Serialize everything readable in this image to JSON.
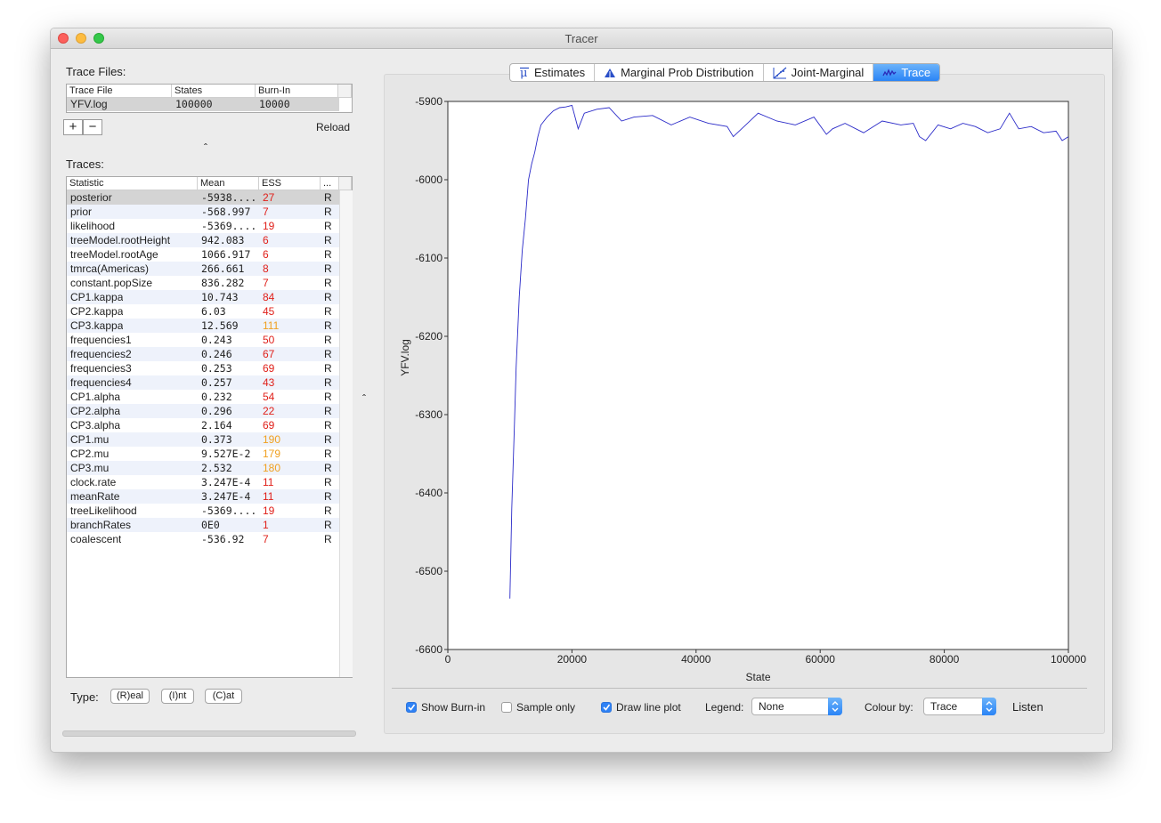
{
  "window": {
    "title": "Tracer"
  },
  "trace_files": {
    "label": "Trace Files:",
    "columns": [
      "Trace File",
      "States",
      "Burn-In"
    ],
    "rows": [
      {
        "file": "YFV.log",
        "states": "100000",
        "burnin": "10000"
      }
    ],
    "add_label": "+",
    "remove_label": "−",
    "reload_label": "Reload",
    "collapse_glyph": "ˆ"
  },
  "traces": {
    "label": "Traces:",
    "columns": [
      "Statistic",
      "Mean",
      "ESS",
      "..."
    ],
    "rows": [
      {
        "stat": "posterior",
        "mean": "-5938....",
        "ess": "27",
        "ess_color": "#e0201a",
        "type": "R"
      },
      {
        "stat": "prior",
        "mean": "-568.997",
        "ess": "7",
        "ess_color": "#e0201a",
        "type": "R"
      },
      {
        "stat": "likelihood",
        "mean": "-5369....",
        "ess": "19",
        "ess_color": "#e0201a",
        "type": "R"
      },
      {
        "stat": "treeModel.rootHeight",
        "mean": "942.083",
        "ess": "6",
        "ess_color": "#e0201a",
        "type": "R"
      },
      {
        "stat": "treeModel.rootAge",
        "mean": "1066.917",
        "ess": "6",
        "ess_color": "#e0201a",
        "type": "R"
      },
      {
        "stat": "tmrca(Americas)",
        "mean": "266.661",
        "ess": "8",
        "ess_color": "#e0201a",
        "type": "R"
      },
      {
        "stat": "constant.popSize",
        "mean": "836.282",
        "ess": "7",
        "ess_color": "#e0201a",
        "type": "R"
      },
      {
        "stat": "CP1.kappa",
        "mean": "10.743",
        "ess": "84",
        "ess_color": "#e0201a",
        "type": "R"
      },
      {
        "stat": "CP2.kappa",
        "mean": "6.03",
        "ess": "45",
        "ess_color": "#e0201a",
        "type": "R"
      },
      {
        "stat": "CP3.kappa",
        "mean": "12.569",
        "ess": "111",
        "ess_color": "#f0a020",
        "type": "R"
      },
      {
        "stat": "frequencies1",
        "mean": "0.243",
        "ess": "50",
        "ess_color": "#e0201a",
        "type": "R"
      },
      {
        "stat": "frequencies2",
        "mean": "0.246",
        "ess": "67",
        "ess_color": "#e0201a",
        "type": "R"
      },
      {
        "stat": "frequencies3",
        "mean": "0.253",
        "ess": "69",
        "ess_color": "#e0201a",
        "type": "R"
      },
      {
        "stat": "frequencies4",
        "mean": "0.257",
        "ess": "43",
        "ess_color": "#e0201a",
        "type": "R"
      },
      {
        "stat": "CP1.alpha",
        "mean": "0.232",
        "ess": "54",
        "ess_color": "#e0201a",
        "type": "R"
      },
      {
        "stat": "CP2.alpha",
        "mean": "0.296",
        "ess": "22",
        "ess_color": "#e0201a",
        "type": "R"
      },
      {
        "stat": "CP3.alpha",
        "mean": "2.164",
        "ess": "69",
        "ess_color": "#e0201a",
        "type": "R"
      },
      {
        "stat": "CP1.mu",
        "mean": "0.373",
        "ess": "190",
        "ess_color": "#f0a020",
        "type": "R"
      },
      {
        "stat": "CP2.mu",
        "mean": "9.527E-2",
        "ess": "179",
        "ess_color": "#f0a020",
        "type": "R"
      },
      {
        "stat": "CP3.mu",
        "mean": "2.532",
        "ess": "180",
        "ess_color": "#f0a020",
        "type": "R"
      },
      {
        "stat": "clock.rate",
        "mean": "3.247E-4",
        "ess": "11",
        "ess_color": "#e0201a",
        "type": "R"
      },
      {
        "stat": "meanRate",
        "mean": "3.247E-4",
        "ess": "11",
        "ess_color": "#e0201a",
        "type": "R"
      },
      {
        "stat": "treeLikelihood",
        "mean": "-5369....",
        "ess": "19",
        "ess_color": "#e0201a",
        "type": "R"
      },
      {
        "stat": "branchRates",
        "mean": "0E0",
        "ess": "1",
        "ess_color": "#e0201a",
        "type": "R"
      },
      {
        "stat": "coalescent",
        "mean": "-536.92",
        "ess": "7",
        "ess_color": "#e0201a",
        "type": "R"
      }
    ]
  },
  "type_bar": {
    "label": "Type:",
    "buttons": [
      "(R)eal",
      "(I)nt",
      "(C)at"
    ]
  },
  "divider_glyph": "ˆ",
  "tabs": [
    {
      "label": "Estimates",
      "icon": "mu-icon",
      "selected": false
    },
    {
      "label": "Marginal Prob Distribution",
      "icon": "triangle-icon",
      "selected": false
    },
    {
      "label": "Joint-Marginal",
      "icon": "joint-icon",
      "selected": false
    },
    {
      "label": "Trace",
      "icon": "trace-icon",
      "selected": true
    }
  ],
  "controls": {
    "show_burnin": {
      "label": "Show Burn-in",
      "checked": true
    },
    "sample_only": {
      "label": "Sample only",
      "checked": false
    },
    "draw_line_plot": {
      "label": "Draw line plot",
      "checked": true
    },
    "legend": {
      "label": "Legend:",
      "value": "None"
    },
    "colour_by": {
      "label": "Colour by:",
      "value": "Trace"
    },
    "listen_label": "Listen"
  },
  "chart_data": {
    "type": "line",
    "xlabel": "State",
    "ylabel": "YFV.log",
    "xlim": [
      0,
      100000
    ],
    "ylim": [
      -6600,
      -5900
    ],
    "xticks": [
      0,
      20000,
      40000,
      60000,
      80000,
      100000
    ],
    "yticks": [
      -5900,
      -6000,
      -6100,
      -6200,
      -6300,
      -6400,
      -6500,
      -6600
    ],
    "line_color": "#2a2ac8",
    "series": [
      {
        "x": [
          10000,
          10300,
          10700,
          11000,
          11500,
          12000,
          12500,
          13000,
          13500,
          14000,
          14500,
          15000,
          16000,
          17000,
          18000,
          19000,
          20000,
          21000,
          22000,
          24000,
          26000,
          28000,
          30000,
          33000,
          36000,
          39000,
          42000,
          45000,
          46000,
          48000,
          50000,
          53000,
          56000,
          59000,
          61000,
          62000,
          64000,
          67000,
          70000,
          73000,
          75000,
          76000,
          77000,
          79000,
          81000,
          83000,
          85000,
          87000,
          89000,
          90500,
          92000,
          94000,
          96000,
          98000,
          99000,
          100000
        ],
        "y": [
          -6535,
          -6420,
          -6320,
          -6240,
          -6150,
          -6090,
          -6050,
          -6000,
          -5980,
          -5965,
          -5945,
          -5930,
          -5920,
          -5912,
          -5908,
          -5907,
          -5905,
          -5935,
          -5915,
          -5910,
          -5908,
          -5925,
          -5920,
          -5918,
          -5930,
          -5920,
          -5928,
          -5932,
          -5945,
          -5930,
          -5915,
          -5925,
          -5930,
          -5920,
          -5942,
          -5935,
          -5928,
          -5940,
          -5925,
          -5930,
          -5928,
          -5945,
          -5950,
          -5930,
          -5935,
          -5928,
          -5932,
          -5940,
          -5935,
          -5915,
          -5935,
          -5932,
          -5940,
          -5938,
          -5950,
          -5945
        ]
      }
    ]
  }
}
